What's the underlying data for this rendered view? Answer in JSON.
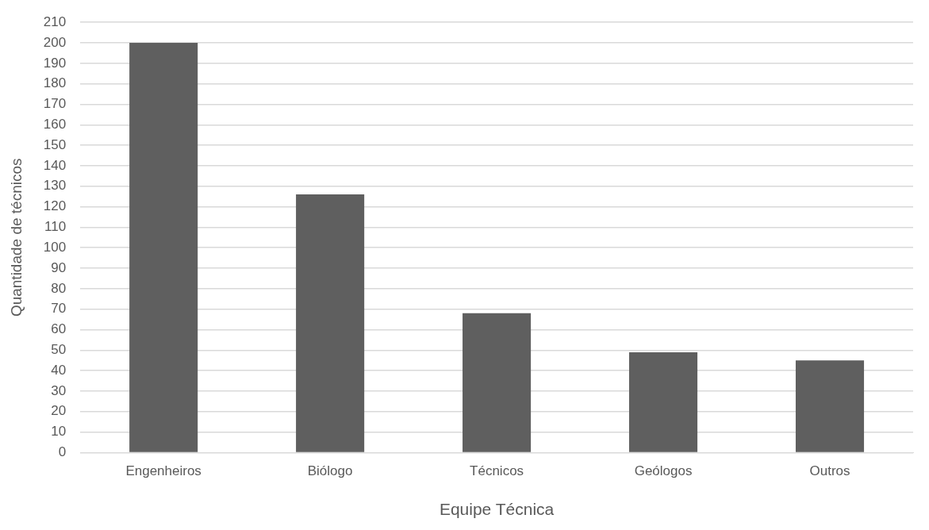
{
  "chart_data": {
    "type": "bar",
    "xlabel": "Equipe Técnica",
    "ylabel": "Quantidade de técnicos",
    "categories": [
      "Engenheiros",
      "Biólogo",
      "Técnicos",
      "Geólogos",
      "Outros"
    ],
    "values": [
      200,
      126,
      68,
      49,
      45
    ],
    "color": "#5f5f5f",
    "ylim": [
      0,
      210
    ],
    "yticks": [
      0,
      10,
      20,
      30,
      40,
      50,
      60,
      70,
      80,
      90,
      100,
      110,
      120,
      130,
      140,
      150,
      160,
      170,
      180,
      190,
      200,
      210
    ],
    "grid": "y"
  }
}
